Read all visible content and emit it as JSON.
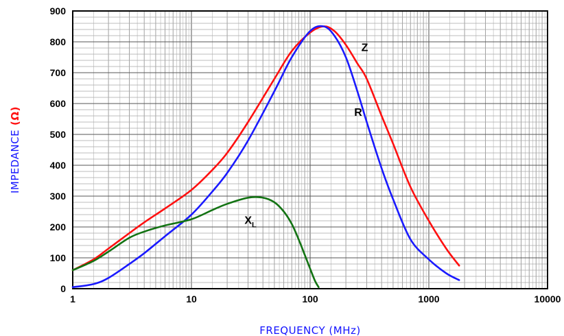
{
  "chart_data": {
    "type": "line",
    "xlabel": "FREQUENCY (MHz)",
    "ylabel": "IMPEDANCE",
    "ylabel_unit": "(Ω)",
    "xscale": "log",
    "xlim": [
      1,
      10000
    ],
    "ylim": [
      0,
      900
    ],
    "grid": true,
    "x_ticks": [
      "1",
      "10",
      "100",
      "1000",
      "10000"
    ],
    "y_ticks": [
      "0",
      "100",
      "200",
      "300",
      "400",
      "500",
      "600",
      "700",
      "800",
      "900"
    ],
    "colors": {
      "Z": "#ff1010",
      "R": "#1a1aff",
      "XL": "#137313",
      "axis_title": "#1414ff"
    },
    "series": [
      {
        "name": "Z",
        "label_main": "Z",
        "label_sub": "",
        "color": "#ff1010",
        "x": [
          1,
          1.5,
          2,
          3,
          4,
          6,
          10,
          15,
          20,
          30,
          50,
          70,
          100,
          130,
          160,
          200,
          250,
          300,
          400,
          500,
          700,
          1000,
          1400,
          1800
        ],
        "y": [
          60,
          95,
          130,
          180,
          215,
          260,
          320,
          385,
          440,
          540,
          680,
          770,
          830,
          850,
          835,
          790,
          730,
          680,
          560,
          470,
          330,
          220,
          130,
          75
        ]
      },
      {
        "name": "R",
        "label_main": "R",
        "label_sub": "",
        "color": "#1a1aff",
        "x": [
          1,
          1.5,
          2,
          3,
          4,
          6,
          10,
          15,
          20,
          30,
          50,
          70,
          100,
          130,
          160,
          200,
          250,
          300,
          400,
          500,
          700,
          1000,
          1400,
          1800
        ],
        "y": [
          5,
          15,
          35,
          80,
          115,
          170,
          240,
          315,
          375,
          480,
          640,
          750,
          835,
          850,
          820,
          750,
          640,
          540,
          390,
          290,
          160,
          95,
          50,
          28
        ]
      },
      {
        "name": "XL",
        "label_main": "X",
        "label_sub": "L",
        "color": "#137313",
        "x": [
          1,
          1.5,
          2,
          3,
          4,
          6,
          10,
          15,
          20,
          30,
          40,
          50,
          60,
          70,
          80,
          90,
          100,
          110,
          118
        ],
        "y": [
          60,
          90,
          120,
          165,
          185,
          205,
          225,
          255,
          275,
          295,
          295,
          280,
          250,
          210,
          160,
          110,
          65,
          25,
          5
        ]
      }
    ]
  }
}
